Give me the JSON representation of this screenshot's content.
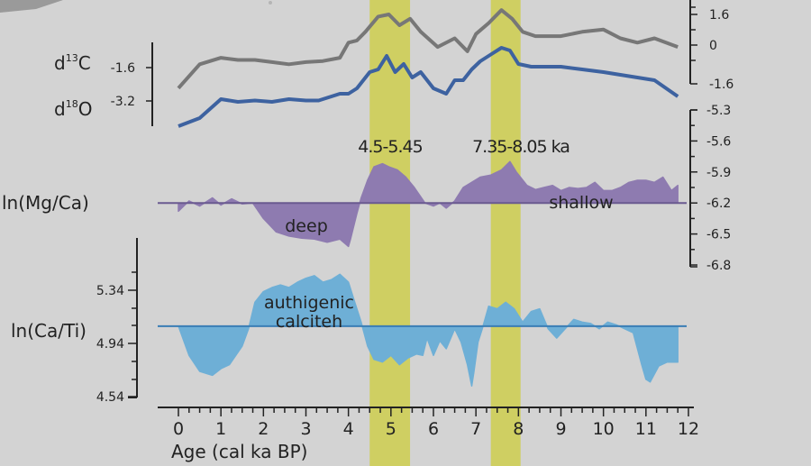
{
  "chart_data": {
    "type": "line",
    "xlabel": "Age (cal ka BP)",
    "xlim": [
      0,
      12
    ],
    "x_ticks": [
      "0",
      "1",
      "2",
      "3",
      "4",
      "5",
      "6",
      "7",
      "8",
      "9",
      "10",
      "11",
      "12"
    ],
    "highlight_bands": [
      {
        "label": "4.5-5.45",
        "range": [
          4.5,
          5.45
        ],
        "color": "#cfcf62"
      },
      {
        "label": "7.35-8.05 ka",
        "range": [
          7.35,
          8.05
        ],
        "color": "#cfcf62"
      }
    ],
    "panels": {
      "d13C": {
        "label": "d13C",
        "label_base": "d",
        "label_sup": "13",
        "label_elem": "C",
        "color": "#777777",
        "ylim": [
          -2.4,
          2.6
        ],
        "right_ticks": [
          "1.6",
          "0",
          "-1.6"
        ],
        "left_tick": "-1.6",
        "x": [
          0,
          0.5,
          1,
          1.4,
          1.8,
          2.2,
          2.6,
          3.0,
          3.4,
          3.8,
          4.0,
          4.2,
          4.4,
          4.7,
          4.95,
          5.2,
          5.45,
          5.7,
          6.1,
          6.5,
          6.8,
          7.0,
          7.3,
          7.6,
          7.85,
          8.1,
          8.4,
          9.0,
          9.5,
          10.0,
          10.4,
          10.8,
          11.2,
          11.75
        ],
        "y": [
          -1.8,
          -0.7,
          -0.4,
          -0.5,
          -0.5,
          -0.6,
          -0.7,
          -0.6,
          -0.55,
          -0.4,
          0.3,
          0.4,
          0.8,
          1.5,
          1.6,
          1.1,
          1.4,
          0.8,
          0.1,
          0.5,
          -0.1,
          0.7,
          1.2,
          1.8,
          1.4,
          0.8,
          0.6,
          0.6,
          0.8,
          0.9,
          0.5,
          0.3,
          0.5,
          0.1
        ]
      },
      "d18O": {
        "label": "d18O",
        "label_base": "d",
        "label_sup": "18",
        "label_elem": "O",
        "color": "#3d62a0",
        "ylim": [
          -4.6,
          -1.4
        ],
        "left_tick": "-3.2",
        "x": [
          0,
          0.5,
          1.0,
          1.4,
          1.8,
          2.2,
          2.6,
          3.0,
          3.3,
          3.6,
          3.8,
          4.0,
          4.2,
          4.5,
          4.7,
          4.9,
          5.1,
          5.3,
          5.5,
          5.7,
          6.0,
          6.3,
          6.5,
          6.7,
          6.9,
          7.1,
          7.4,
          7.6,
          7.8,
          8.0,
          8.3,
          9.0,
          9.5,
          10.0,
          10.4,
          10.8,
          11.2,
          11.75
        ],
        "y": [
          -4.6,
          -4.3,
          -3.6,
          -3.7,
          -3.65,
          -3.7,
          -3.6,
          -3.65,
          -3.65,
          -3.5,
          -3.4,
          -3.4,
          -3.2,
          -2.6,
          -2.5,
          -2.0,
          -2.6,
          -2.3,
          -2.8,
          -2.6,
          -3.2,
          -3.4,
          -2.9,
          -2.9,
          -2.5,
          -2.2,
          -1.9,
          -1.7,
          -1.8,
          -2.3,
          -2.4,
          -2.4,
          -2.5,
          -2.6,
          -2.7,
          -2.8,
          -2.9,
          -3.5
        ]
      }
    },
    "mgca_axis": {
      "ticks": [
        "-5.3",
        "-5.6",
        "-5.9",
        "-6.2",
        "-6.5",
        "-6.8"
      ],
      "ylim": [
        -6.8,
        -5.3
      ]
    },
    "mgca": {
      "label": "ln(Mg/Ca)",
      "color": "#8e7bb0",
      "baseline": -6.2,
      "annotations": [
        "deep",
        "shallow"
      ],
      "x": [
        0,
        0.25,
        0.5,
        0.8,
        1.0,
        1.25,
        1.5,
        1.75,
        2.0,
        2.3,
        2.6,
        2.9,
        3.2,
        3.5,
        3.8,
        4.0,
        4.05,
        4.2,
        4.3,
        4.45,
        4.6,
        4.8,
        4.95,
        5.15,
        5.35,
        5.55,
        5.8,
        6.0,
        6.15,
        6.3,
        6.5,
        6.7,
        6.9,
        7.1,
        7.35,
        7.6,
        7.8,
        7.95,
        8.2,
        8.4,
        8.6,
        8.8,
        9.0,
        9.2,
        9.4,
        9.6,
        9.8,
        10.0,
        10.2,
        10.4,
        10.6,
        10.8,
        11.0,
        11.2,
        11.4,
        11.6,
        11.75
      ],
      "y": [
        -6.28,
        -6.18,
        -6.23,
        -6.15,
        -6.22,
        -6.16,
        -6.21,
        -6.2,
        -6.35,
        -6.48,
        -6.52,
        -6.54,
        -6.55,
        -6.58,
        -6.55,
        -6.62,
        -6.55,
        -6.3,
        -6.15,
        -5.98,
        -5.85,
        -5.82,
        -5.85,
        -5.88,
        -5.95,
        -6.05,
        -6.2,
        -6.23,
        -6.2,
        -6.25,
        -6.18,
        -6.05,
        -6.0,
        -5.95,
        -5.93,
        -5.88,
        -5.8,
        -5.9,
        -6.03,
        -6.07,
        -6.05,
        -6.03,
        -6.08,
        -6.05,
        -6.06,
        -6.05,
        -6.0,
        -6.08,
        -6.08,
        -6.05,
        -6.0,
        -5.98,
        -5.98,
        -6.0,
        -5.95,
        -6.08,
        -6.03
      ]
    },
    "cati": {
      "label": "ln(Ca/Ti)",
      "color": "#6eafd6",
      "baseline": 5.07,
      "ylim": [
        4.5,
        5.47
      ],
      "left_ticks": [
        "5.34",
        "4.94",
        "4.54"
      ],
      "annotation_lines": [
        "authigenic",
        "calciteh"
      ],
      "x": [
        0,
        0.25,
        0.5,
        0.8,
        1.0,
        1.2,
        1.5,
        1.65,
        1.8,
        2.0,
        2.2,
        2.4,
        2.6,
        2.8,
        3.0,
        3.2,
        3.4,
        3.6,
        3.8,
        4.0,
        4.15,
        4.3,
        4.45,
        4.6,
        4.8,
        5.0,
        5.2,
        5.4,
        5.6,
        5.75,
        5.85,
        6.0,
        6.15,
        6.3,
        6.5,
        6.65,
        6.8,
        6.9,
        6.95,
        7.05,
        7.15,
        7.3,
        7.5,
        7.7,
        7.9,
        8.1,
        8.3,
        8.5,
        8.7,
        8.9,
        9.1,
        9.3,
        9.5,
        9.7,
        9.9,
        10.1,
        10.3,
        10.5,
        10.7,
        10.9,
        11.0,
        11.1,
        11.3,
        11.5,
        11.75
      ],
      "y": [
        5.07,
        4.85,
        4.73,
        4.7,
        4.75,
        4.78,
        4.92,
        5.05,
        5.25,
        5.33,
        5.36,
        5.38,
        5.36,
        5.4,
        5.43,
        5.45,
        5.4,
        5.42,
        5.46,
        5.4,
        5.25,
        5.1,
        4.92,
        4.82,
        4.8,
        4.85,
        4.78,
        4.83,
        4.86,
        4.85,
        4.98,
        4.85,
        4.96,
        4.9,
        5.05,
        4.95,
        4.78,
        4.62,
        4.72,
        4.95,
        5.05,
        5.22,
        5.2,
        5.25,
        5.2,
        5.1,
        5.18,
        5.2,
        5.05,
        4.98,
        5.05,
        5.12,
        5.1,
        5.09,
        5.05,
        5.1,
        5.08,
        5.05,
        5.02,
        4.78,
        4.67,
        4.65,
        4.77,
        4.8,
        4.8
      ]
    }
  }
}
